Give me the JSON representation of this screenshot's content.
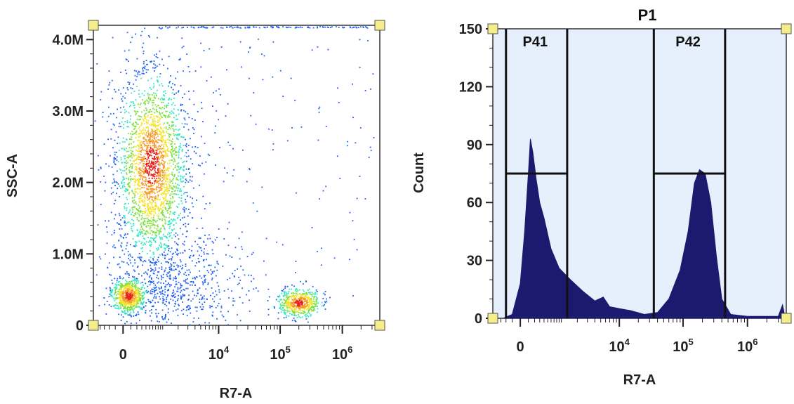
{
  "chart_data": [
    {
      "type": "scatter",
      "title": "",
      "xlabel": "R7-A",
      "ylabel": "SSC-A",
      "x_scale": "biexponential",
      "y_scale": "linear",
      "ylim": [
        0,
        4200000
      ],
      "x_tick_labels": [
        "0",
        "10",
        "10",
        "10"
      ],
      "x_tick_exponents": [
        "",
        "4",
        "5",
        "6"
      ],
      "x_tick_values": [
        0,
        10000,
        100000,
        1000000
      ],
      "y_tick_labels": [
        "0",
        "1.0M",
        "2.0M",
        "3.0M",
        "4.0M"
      ],
      "y_tick_values": [
        0,
        1000000,
        2000000,
        3000000,
        4000000
      ],
      "clusters": [
        {
          "name_hint": "negative-low-ssc",
          "x_center": 60,
          "y_center": 420000,
          "density": "high"
        },
        {
          "name_hint": "negative-high-ssc",
          "x_center": 550,
          "y_center": 2250000,
          "density": "high"
        },
        {
          "name_hint": "positive-low-ssc",
          "x_center": 200000,
          "y_center": 320000,
          "density": "high"
        }
      ],
      "colors": {
        "low": "#1f5ff2",
        "mid": "#2ee6c2",
        "high": "#f4e32a",
        "peak": "#e8231a"
      }
    },
    {
      "type": "area",
      "title": "P1",
      "xlabel": "R7-A",
      "ylabel": "Count",
      "x_scale": "biexponential",
      "ylim": [
        0,
        150
      ],
      "x_tick_labels": [
        "0",
        "10",
        "10",
        "10"
      ],
      "x_tick_exponents": [
        "",
        "4",
        "5",
        "6"
      ],
      "x_tick_values": [
        0,
        10000,
        100000,
        1000000
      ],
      "y_tick_labels": [
        "0",
        "30",
        "60",
        "90",
        "120",
        "150"
      ],
      "y_tick_values": [
        0,
        30,
        60,
        90,
        120,
        150
      ],
      "histogram_points": [
        {
          "x": -250,
          "y": 0
        },
        {
          "x": -100,
          "y": 2
        },
        {
          "x": 0,
          "y": 18
        },
        {
          "x": 50,
          "y": 45
        },
        {
          "x": 100,
          "y": 75
        },
        {
          "x": 130,
          "y": 93
        },
        {
          "x": 170,
          "y": 86
        },
        {
          "x": 230,
          "y": 72
        },
        {
          "x": 300,
          "y": 60
        },
        {
          "x": 400,
          "y": 52
        },
        {
          "x": 600,
          "y": 36
        },
        {
          "x": 900,
          "y": 26
        },
        {
          "x": 1500,
          "y": 20
        },
        {
          "x": 2500,
          "y": 14
        },
        {
          "x": 4000,
          "y": 9
        },
        {
          "x": 5500,
          "y": 11
        },
        {
          "x": 7000,
          "y": 6
        },
        {
          "x": 10000,
          "y": 5
        },
        {
          "x": 15000,
          "y": 4
        },
        {
          "x": 25000,
          "y": 2
        },
        {
          "x": 40000,
          "y": 3
        },
        {
          "x": 60000,
          "y": 10
        },
        {
          "x": 90000,
          "y": 25
        },
        {
          "x": 120000,
          "y": 45
        },
        {
          "x": 150000,
          "y": 70
        },
        {
          "x": 180000,
          "y": 77
        },
        {
          "x": 220000,
          "y": 75
        },
        {
          "x": 270000,
          "y": 60
        },
        {
          "x": 330000,
          "y": 32
        },
        {
          "x": 400000,
          "y": 10
        },
        {
          "x": 550000,
          "y": 2
        },
        {
          "x": 1000000,
          "y": 1
        },
        {
          "x": 2000000,
          "y": 1
        },
        {
          "x": 3000000,
          "y": 1
        },
        {
          "x": 3500000,
          "y": 7
        },
        {
          "x": 3800000,
          "y": 1
        }
      ],
      "gates": [
        {
          "label": "P41",
          "x_min": -200,
          "x_max": 1300,
          "y_level": 75
        },
        {
          "label": "P42",
          "x_min": 35000,
          "x_max": 450000,
          "y_level": 75
        }
      ],
      "colors": {
        "fill": "#1a1a6e",
        "background": "#e6f0fc"
      }
    }
  ]
}
